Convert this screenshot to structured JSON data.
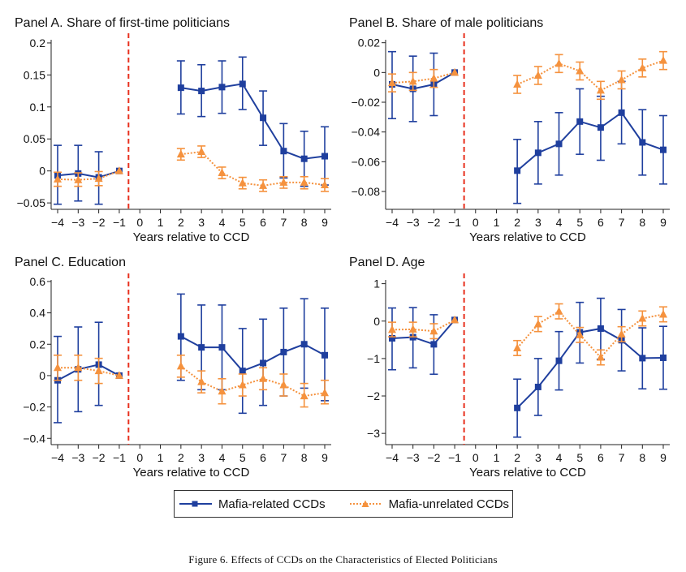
{
  "figure": {
    "caption": "Figure 6. Effects of CCDs on the Characteristics of Elected Politicians",
    "legend": {
      "mafia_related": "Mafia-related CCDs",
      "mafia_unrelated": "Mafia-unrelated CCDs"
    },
    "colors": {
      "related": "#1f3f9e",
      "unrelated": "#f5923e",
      "refline": "#e8301e",
      "axis": "#222222"
    }
  },
  "chart_data": [
    {
      "id": "A",
      "type": "line",
      "title": "Panel A. Share of first-time politicians",
      "xlabel": "Years relative to CCD",
      "x_ticks": [
        -4,
        -3,
        -2,
        -1,
        0,
        1,
        2,
        3,
        4,
        5,
        6,
        7,
        8,
        9
      ],
      "x_tick_labels": [
        "−4",
        "−3",
        "−2",
        "−1",
        "0",
        "1",
        "2",
        "3",
        "4",
        "5",
        "6",
        "7",
        "8",
        "9"
      ],
      "xlim": [
        -4,
        9
      ],
      "ylim": [
        -0.06,
        0.205
      ],
      "y_ticks": [
        -0.05,
        0,
        0.05,
        0.1,
        0.15,
        0.2
      ],
      "y_tick_labels": [
        "−0.05",
        "0",
        "0.05",
        "0.1",
        "0.15",
        "0.2"
      ],
      "ref_x": -0.55,
      "series": [
        {
          "name": "Mafia-related CCDs",
          "pre": {
            "x": [
              -4,
              -3,
              -2,
              -1
            ],
            "y": [
              -0.007,
              -0.004,
              -0.01,
              0
            ],
            "lo": [
              -0.052,
              -0.047,
              -0.052,
              0
            ],
            "hi": [
              0.04,
              0.04,
              0.03,
              0
            ]
          },
          "post": {
            "x": [
              2,
              3,
              4,
              5,
              6,
              7,
              8,
              9
            ],
            "y": [
              0.13,
              0.125,
              0.131,
              0.136,
              0.083,
              0.031,
              0.019,
              0.023
            ],
            "lo": [
              0.089,
              0.085,
              0.09,
              0.096,
              0.04,
              -0.011,
              -0.024,
              -0.022
            ],
            "hi": [
              0.172,
              0.166,
              0.172,
              0.178,
              0.125,
              0.074,
              0.062,
              0.069
            ]
          }
        },
        {
          "name": "Mafia-unrelated CCDs",
          "pre": {
            "x": [
              -4,
              -3,
              -2,
              -1
            ],
            "y": [
              -0.013,
              -0.014,
              -0.012,
              0
            ],
            "lo": [
              -0.024,
              -0.024,
              -0.023,
              0
            ],
            "hi": [
              -0.002,
              -0.003,
              -0.001,
              0
            ]
          },
          "post": {
            "x": [
              2,
              3,
              4,
              5,
              6,
              7,
              8,
              9
            ],
            "y": [
              0.026,
              0.03,
              -0.003,
              -0.019,
              -0.023,
              -0.018,
              -0.018,
              -0.022
            ],
            "lo": [
              0.017,
              0.021,
              -0.012,
              -0.028,
              -0.032,
              -0.027,
              -0.028,
              -0.032
            ],
            "hi": [
              0.035,
              0.039,
              0.006,
              -0.01,
              -0.014,
              -0.009,
              -0.009,
              -0.012
            ]
          }
        }
      ]
    },
    {
      "id": "B",
      "type": "line",
      "title": "Panel B. Share of male politicians",
      "xlabel": "Years relative to CCD",
      "x_ticks": [
        -4,
        -3,
        -2,
        -1,
        0,
        1,
        2,
        3,
        4,
        5,
        6,
        7,
        8,
        9
      ],
      "x_tick_labels": [
        "−4",
        "−3",
        "−2",
        "−1",
        "0",
        "1",
        "2",
        "3",
        "4",
        "5",
        "6",
        "7",
        "8",
        "9"
      ],
      "xlim": [
        -4,
        9
      ],
      "ylim": [
        -0.092,
        0.022
      ],
      "y_ticks": [
        -0.08,
        -0.06,
        -0.04,
        -0.02,
        0,
        0.02
      ],
      "y_tick_labels": [
        "−0.08",
        "−0.06",
        "−0.04",
        "−0.02",
        "0",
        "0.02"
      ],
      "ref_x": -0.55,
      "series": [
        {
          "name": "Mafia-related CCDs",
          "pre": {
            "x": [
              -4,
              -3,
              -2,
              -1
            ],
            "y": [
              -0.008,
              -0.011,
              -0.008,
              0
            ],
            "lo": [
              -0.031,
              -0.033,
              -0.029,
              0
            ],
            "hi": [
              0.014,
              0.011,
              0.013,
              0
            ]
          },
          "post": {
            "x": [
              2,
              3,
              4,
              5,
              6,
              7,
              8,
              9
            ],
            "y": [
              -0.066,
              -0.054,
              -0.048,
              -0.033,
              -0.037,
              -0.027,
              -0.047,
              -0.052
            ],
            "lo": [
              -0.088,
              -0.075,
              -0.069,
              -0.055,
              -0.059,
              -0.048,
              -0.069,
              -0.075
            ],
            "hi": [
              -0.045,
              -0.033,
              -0.027,
              -0.011,
              -0.016,
              -0.006,
              -0.025,
              -0.029
            ]
          }
        },
        {
          "name": "Mafia-unrelated CCDs",
          "pre": {
            "x": [
              -4,
              -3,
              -2,
              -1
            ],
            "y": [
              -0.007,
              -0.006,
              -0.004,
              0
            ],
            "lo": [
              -0.013,
              -0.012,
              -0.01,
              0
            ],
            "hi": [
              -0.001,
              0,
              0.002,
              0
            ]
          },
          "post": {
            "x": [
              2,
              3,
              4,
              5,
              6,
              7,
              8,
              9
            ],
            "y": [
              -0.008,
              -0.002,
              0.006,
              0.001,
              -0.012,
              -0.005,
              0.003,
              0.008
            ],
            "lo": [
              -0.014,
              -0.008,
              0,
              -0.005,
              -0.018,
              -0.011,
              -0.003,
              0.002
            ],
            "hi": [
              -0.002,
              0.004,
              0.012,
              0.007,
              -0.006,
              0.001,
              0.009,
              0.014
            ]
          }
        }
      ]
    },
    {
      "id": "C",
      "type": "line",
      "title": "Panel C. Education",
      "xlabel": "Years relative to CCD",
      "x_ticks": [
        -4,
        -3,
        -2,
        -1,
        0,
        1,
        2,
        3,
        4,
        5,
        6,
        7,
        8,
        9
      ],
      "x_tick_labels": [
        "−4",
        "−3",
        "−2",
        "−1",
        "0",
        "1",
        "2",
        "3",
        "4",
        "5",
        "6",
        "7",
        "8",
        "9"
      ],
      "xlim": [
        -4,
        9
      ],
      "ylim": [
        -0.44,
        0.61
      ],
      "y_ticks": [
        -0.4,
        -0.2,
        0,
        0.2,
        0.4,
        0.6
      ],
      "y_tick_labels": [
        "−0.4",
        "−0.2",
        "0",
        "0.2",
        "0.4",
        "0.6"
      ],
      "ref_x": -0.55,
      "series": [
        {
          "name": "Mafia-related CCDs",
          "pre": {
            "x": [
              -4,
              -3,
              -2,
              -1
            ],
            "y": [
              -0.03,
              0.04,
              0.07,
              0
            ],
            "lo": [
              -0.3,
              -0.23,
              -0.19,
              0
            ],
            "hi": [
              0.25,
              0.31,
              0.34,
              0
            ]
          },
          "post": {
            "x": [
              2,
              3,
              4,
              5,
              6,
              7,
              8,
              9
            ],
            "y": [
              0.25,
              0.18,
              0.18,
              0.03,
              0.08,
              0.15,
              0.2,
              0.13
            ],
            "lo": [
              -0.03,
              -0.09,
              -0.09,
              -0.24,
              -0.19,
              -0.13,
              -0.08,
              -0.16
            ],
            "hi": [
              0.52,
              0.45,
              0.45,
              0.3,
              0.36,
              0.43,
              0.49,
              0.43
            ]
          }
        },
        {
          "name": "Mafia-unrelated CCDs",
          "pre": {
            "x": [
              -4,
              -3,
              -2,
              -1
            ],
            "y": [
              0.05,
              0.05,
              0.03,
              0
            ],
            "lo": [
              -0.03,
              -0.03,
              -0.05,
              0
            ],
            "hi": [
              0.13,
              0.13,
              0.11,
              0
            ]
          },
          "post": {
            "x": [
              2,
              3,
              4,
              5,
              6,
              7,
              8,
              9
            ],
            "y": [
              0.06,
              -0.04,
              -0.1,
              -0.06,
              -0.02,
              -0.06,
              -0.13,
              -0.11
            ],
            "lo": [
              -0.01,
              -0.11,
              -0.18,
              -0.13,
              -0.09,
              -0.13,
              -0.2,
              -0.18
            ],
            "hi": [
              0.13,
              0.03,
              -0.02,
              0.01,
              0.05,
              0.01,
              -0.05,
              -0.03
            ]
          }
        }
      ]
    },
    {
      "id": "D",
      "type": "line",
      "title": "Panel D. Age",
      "xlabel": "Years relative to CCD",
      "x_ticks": [
        -4,
        -3,
        -2,
        -1,
        0,
        1,
        2,
        3,
        4,
        5,
        6,
        7,
        8,
        9
      ],
      "x_tick_labels": [
        "−4",
        "−3",
        "−2",
        "−1",
        "0",
        "1",
        "2",
        "3",
        "4",
        "5",
        "6",
        "7",
        "8",
        "9"
      ],
      "xlim": [
        -4,
        9
      ],
      "ylim": [
        -3.3,
        1.1
      ],
      "y_ticks": [
        -3,
        -2,
        -1,
        0,
        1
      ],
      "y_tick_labels": [
        "−3",
        "−2",
        "−1",
        "0",
        "1"
      ],
      "ref_x": -0.55,
      "series": [
        {
          "name": "Mafia-related CCDs",
          "pre": {
            "x": [
              -4,
              -3,
              -2,
              -1
            ],
            "y": [
              -0.46,
              -0.43,
              -0.62,
              0.03
            ],
            "lo": [
              -1.3,
              -1.25,
              -1.42,
              0.03
            ],
            "hi": [
              0.35,
              0.36,
              0.17,
              0.03
            ]
          },
          "post": {
            "x": [
              2,
              3,
              4,
              5,
              6,
              7,
              8,
              9
            ],
            "y": [
              -2.32,
              -1.76,
              -1.06,
              -0.3,
              -0.2,
              -0.51,
              -0.99,
              -0.98
            ],
            "lo": [
              -3.1,
              -2.52,
              -1.84,
              -1.12,
              -1.02,
              -1.33,
              -1.81,
              -1.82
            ],
            "hi": [
              -1.55,
              -1.0,
              -0.28,
              0.5,
              0.61,
              0.31,
              -0.18,
              -0.14
            ]
          }
        },
        {
          "name": "Mafia-unrelated CCDs",
          "pre": {
            "x": [
              -4,
              -3,
              -2,
              -1
            ],
            "y": [
              -0.23,
              -0.22,
              -0.27,
              0.03
            ],
            "lo": [
              -0.42,
              -0.42,
              -0.47,
              0.03
            ],
            "hi": [
              -0.03,
              -0.03,
              -0.07,
              0.03
            ]
          },
          "post": {
            "x": [
              2,
              3,
              4,
              5,
              6,
              7,
              8,
              9
            ],
            "y": [
              -0.72,
              -0.08,
              0.26,
              -0.37,
              -0.97,
              -0.35,
              0.07,
              0.18
            ],
            "lo": [
              -0.92,
              -0.28,
              0.06,
              -0.57,
              -1.17,
              -0.55,
              -0.13,
              -0.02
            ],
            "hi": [
              -0.52,
              0.12,
              0.46,
              -0.17,
              -0.77,
              -0.15,
              0.27,
              0.38
            ]
          }
        }
      ]
    }
  ]
}
